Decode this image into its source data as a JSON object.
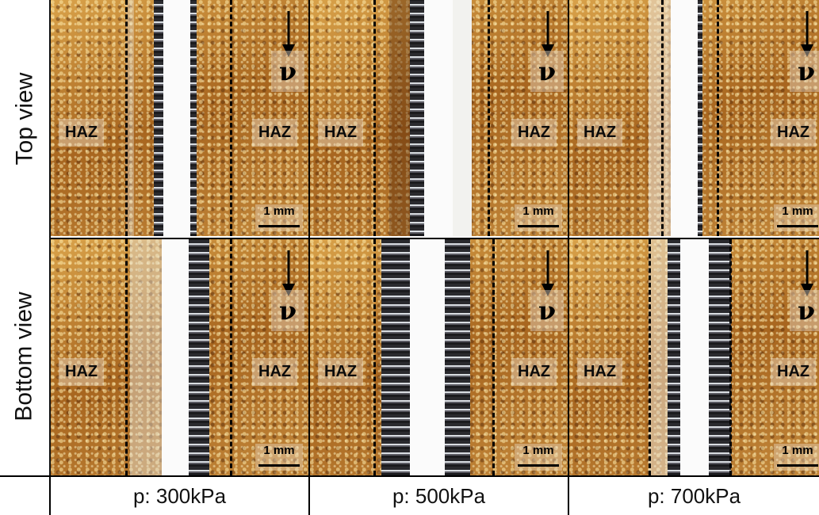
{
  "row_labels": {
    "top": "Top view",
    "bottom": "Bottom view"
  },
  "column_labels": [
    "p: 300kPa",
    "p: 500kPa",
    "p: 700kPa"
  ],
  "zone_label": "HAZ",
  "direction_symbol": "ν",
  "scale_bar_label": "1 mm",
  "colors": {
    "wood": "#a8661f",
    "wood_light": "#d9a24a",
    "kerf": "#fbfbfb",
    "char": "#1b1b1e",
    "dash": "#000000"
  }
}
